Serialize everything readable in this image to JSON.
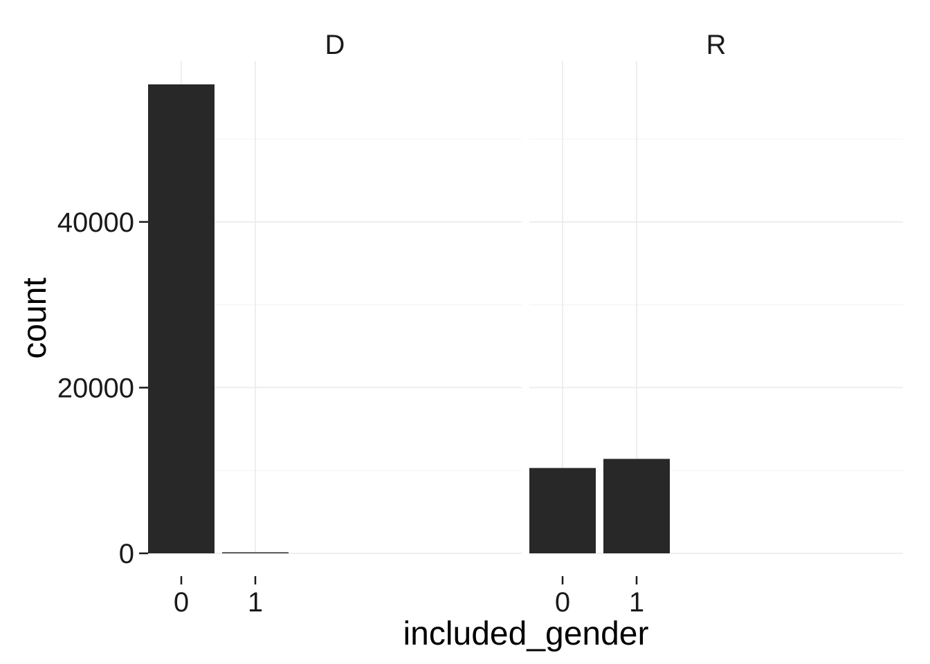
{
  "chart_data": {
    "type": "bar",
    "facet_variable": "",
    "facets": [
      {
        "label": "D",
        "categories": [
          "0",
          "1"
        ],
        "values": [
          56600,
          80
        ]
      },
      {
        "label": "R",
        "categories": [
          "0",
          "1"
        ],
        "values": [
          10300,
          11400
        ]
      }
    ],
    "xlabel": "included_gender",
    "ylabel": "count",
    "ylim": [
      0,
      56600
    ],
    "y_ticks": [
      "0",
      "20000",
      "40000"
    ],
    "y_tick_values": [
      0,
      20000,
      40000
    ],
    "y_minor_tick_values": [
      10000,
      30000,
      50000
    ],
    "grid": true,
    "bar_color": "#282828",
    "legend": "none"
  }
}
